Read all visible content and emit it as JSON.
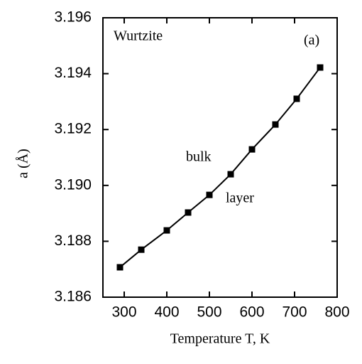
{
  "chart_data": {
    "type": "line",
    "x_label": "Temperature T, K",
    "y_label": "a (Å)",
    "annotations": [
      "Wurtzite",
      "(a)",
      "bulk",
      "layer"
    ],
    "x": [
      290,
      340,
      400,
      450,
      500,
      550,
      600,
      655,
      705,
      760
    ],
    "series": [
      {
        "color": "#000000",
        "values": [
          3.18707,
          3.1877,
          3.18839,
          3.18903,
          3.18966,
          3.1904,
          3.19129,
          3.19218,
          3.1931,
          3.19422
        ]
      }
    ],
    "xlim": [
      250,
      800
    ],
    "xticks": [
      300,
      400,
      500,
      600,
      700,
      800
    ],
    "ylim": [
      3.186,
      3.196
    ],
    "yticks": [
      3.186,
      3.188,
      {
        "value": 3.19,
        "label": "3.190"
      },
      3.192,
      3.194,
      3.196
    ],
    "grid": false
  }
}
